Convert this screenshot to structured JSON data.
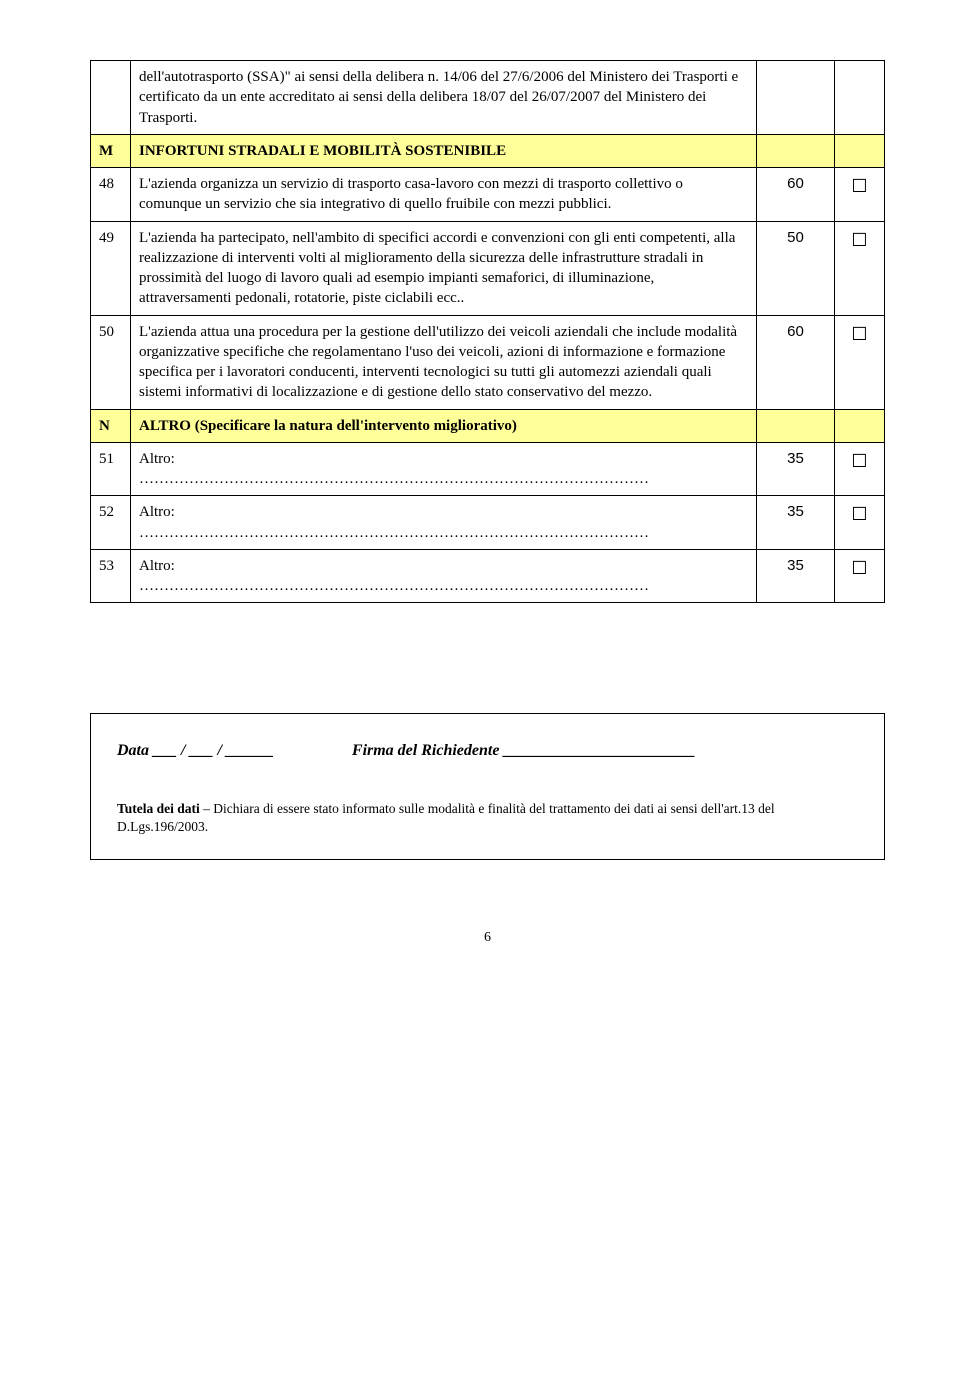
{
  "colors": {
    "header_bg": "#ffff99",
    "border": "#000000",
    "text": "#000000"
  },
  "rows": [
    {
      "num": "",
      "desc": "dell'autotrasporto (SSA)\" ai sensi della delibera n. 14/06 del 27/6/2006 del Ministero dei Trasporti e certificato da un ente accreditato ai sensi della delibera 18/07 del 26/07/2007 del Ministero dei Trasporti.",
      "val": "",
      "check": "",
      "type": "normal"
    },
    {
      "num": "M",
      "desc": "INFORTUNI STRADALI E MOBILITÀ SOSTENIBILE",
      "val": "",
      "check": "",
      "type": "header"
    },
    {
      "num": "48",
      "desc": "L'azienda organizza un servizio di trasporto casa-lavoro con mezzi di trasporto collettivo o comunque un servizio che sia integrativo di quello fruibile con mezzi pubblici.",
      "val": "60",
      "check": "☐",
      "type": "normal"
    },
    {
      "num": "49",
      "desc": "L'azienda ha partecipato,  nell'ambito di specifici accordi e convenzioni con gli enti competenti, alla realizzazione di interventi volti al miglioramento della sicurezza delle infrastrutture stradali in prossimità del luogo di lavoro quali ad esempio impianti semaforici, di illuminazione, attraversamenti pedonali, rotatorie, piste ciclabili ecc..",
      "val": "50",
      "check": "☐",
      "type": "normal"
    },
    {
      "num": "50",
      "desc": "L'azienda attua una procedura per la gestione dell'utilizzo dei veicoli aziendali che include modalità organizzative specifiche che regolamentano l'uso dei veicoli, azioni di informazione e formazione specifica per i lavoratori conducenti, interventi tecnologici su tutti gli automezzi aziendali quali sistemi informativi di localizzazione e di gestione dello stato conservativo del mezzo.",
      "val": "60",
      "check": "☐",
      "type": "normal"
    },
    {
      "num": "N",
      "desc": "ALTRO (Specificare la natura dell'intervento migliorativo)",
      "val": "",
      "check": "",
      "type": "header"
    },
    {
      "num": "51",
      "desc": "Altro:",
      "val": "35",
      "check": "☐",
      "type": "altro"
    },
    {
      "num": "52",
      "desc": "Altro:",
      "val": "35",
      "check": "☐",
      "type": "altro"
    },
    {
      "num": "53",
      "desc": "Altro:",
      "val": "35",
      "check": "☐",
      "type": "altro"
    }
  ],
  "signature": {
    "date_label": "Data",
    "sep": " ___ / ___ / ______",
    "firma_label": "Firma del Richiedente",
    "firma_line": " ________________________",
    "privacy_bold": "Tutela dei dati",
    "privacy_text": " – Dichiara di essere stato informato sulle modalità e finalità del trattamento dei dati ai sensi dell'art.13 del D.Lgs.196/2003."
  },
  "page_number": "6",
  "dots": "…………………………………………………………………………………………"
}
